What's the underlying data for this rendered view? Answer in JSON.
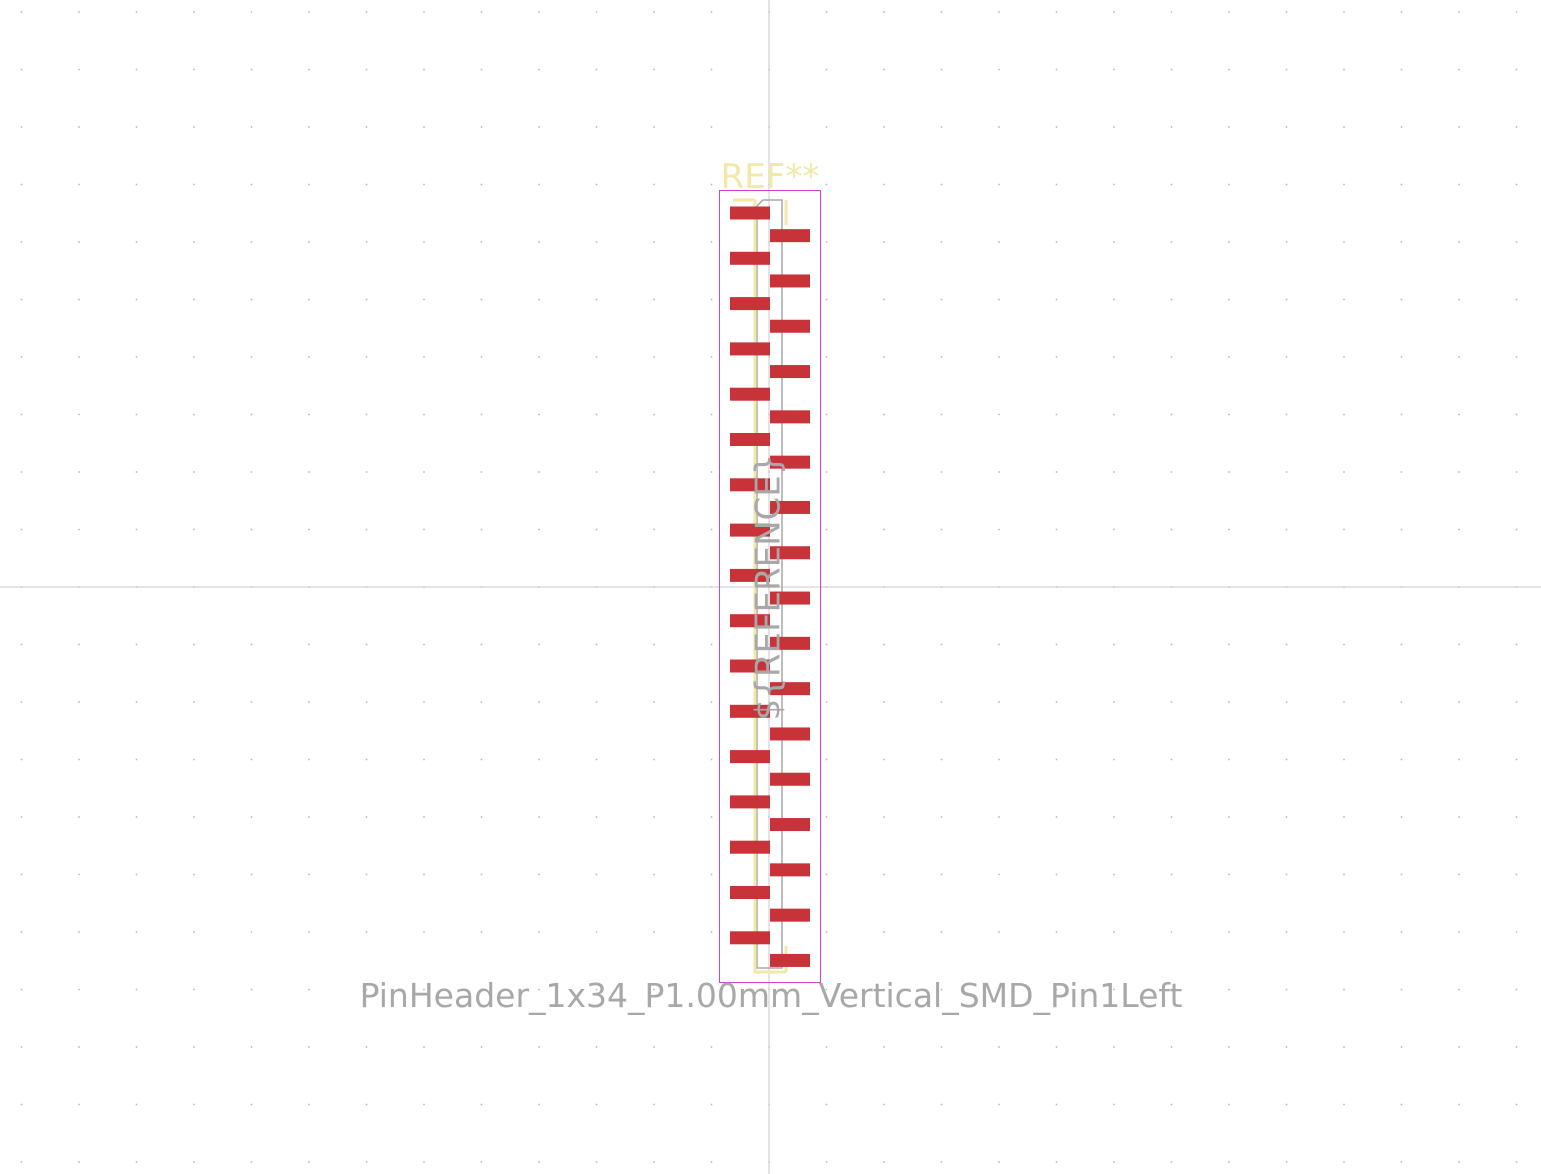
{
  "footprint": {
    "reference": "REF**",
    "value": "PinHeader_1x34_P1.00mm_Vertical_SMD_Pin1Left",
    "user_reference": "${REFERENCE}",
    "pin_count": 34,
    "pin_pitch_mm": 1.0,
    "pin1_side": "left"
  },
  "colors": {
    "background": "#ffffff",
    "grid_dot": "#b4b4b4",
    "axis_line": "#c8c8d2",
    "pad": "#c8333a",
    "silkscreen": "#f2e8a8",
    "courtyard": "#cc44cc",
    "fabrication": "#a8a8a8"
  }
}
